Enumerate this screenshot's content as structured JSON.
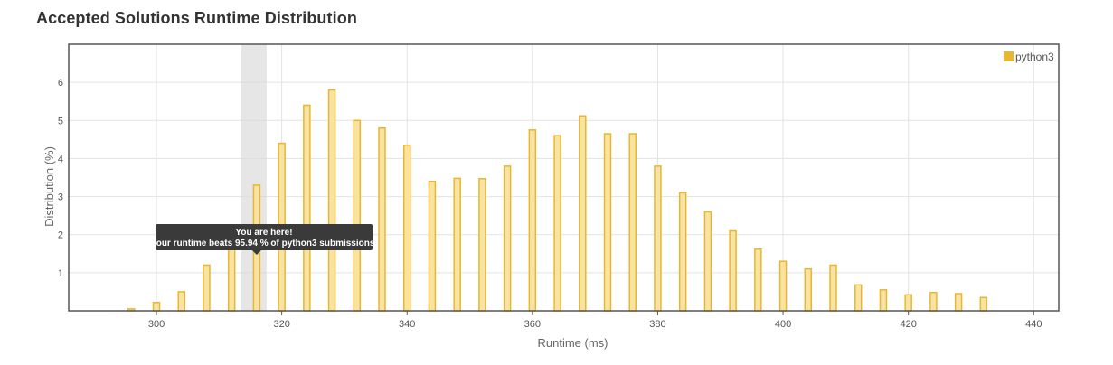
{
  "page": {
    "title": "Accepted Solutions Runtime Distribution"
  },
  "chart_data": {
    "type": "bar",
    "title": "Accepted Solutions Runtime Distribution",
    "xlabel": "Runtime (ms)",
    "ylabel": "Distribution (%)",
    "xlim": [
      286,
      444
    ],
    "ylim": [
      0,
      7
    ],
    "xticks": [
      300,
      320,
      340,
      360,
      380,
      400,
      420,
      440
    ],
    "yticks": [
      1,
      2,
      3,
      4,
      5,
      6
    ],
    "grid": true,
    "legend_position": "top-right",
    "colors": {
      "bar_fill": "#f9e3a3",
      "bar_stroke": "#e8b730",
      "legend": "#e8b730",
      "highlight": "#d8d8d8",
      "tooltip": "#3a3a3a"
    },
    "series": [
      {
        "name": "python3",
        "x": [
          296,
          300,
          304,
          308,
          312,
          316,
          320,
          324,
          328,
          332,
          336,
          340,
          344,
          348,
          352,
          356,
          360,
          364,
          368,
          372,
          376,
          380,
          384,
          388,
          392,
          396,
          400,
          404,
          408,
          412,
          416,
          420,
          424,
          428,
          432
        ],
        "values": [
          0.05,
          0.22,
          0.5,
          1.2,
          2.0,
          3.3,
          4.4,
          5.4,
          5.8,
          5.0,
          4.8,
          4.35,
          3.4,
          3.48,
          3.47,
          3.8,
          4.75,
          4.6,
          5.12,
          4.65,
          4.65,
          3.8,
          3.1,
          2.6,
          2.1,
          1.62,
          1.3,
          1.1,
          1.2,
          0.68,
          0.55,
          0.42,
          0.48,
          0.45,
          0.35
        ]
      }
    ],
    "highlight": {
      "x": 316
    },
    "tooltip": {
      "line1": "You are here!",
      "line2": "Your runtime beats 95.94 % of python3 submissions."
    }
  }
}
